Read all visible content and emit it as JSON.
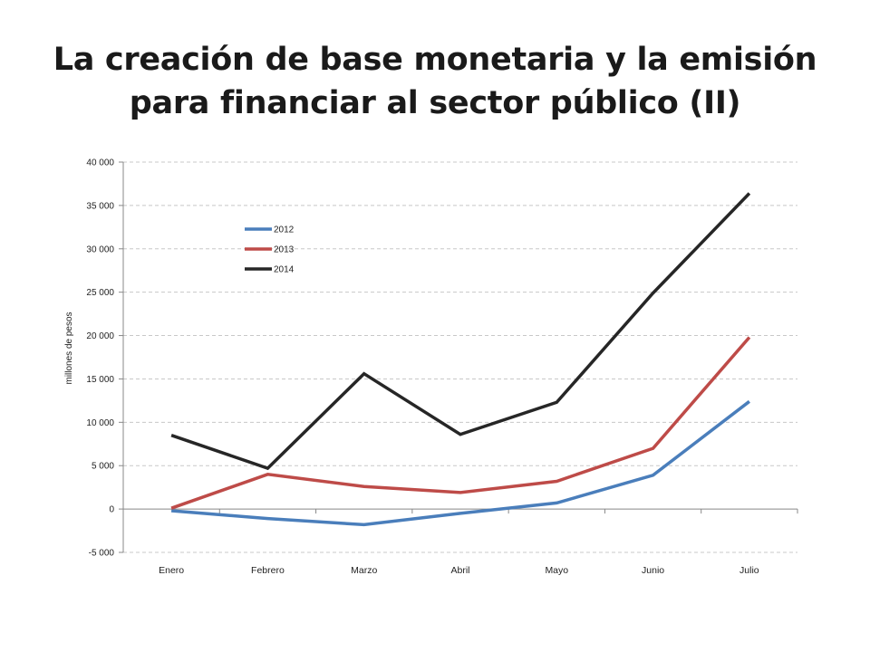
{
  "title": {
    "line1": "La creación de base monetaria y la emisión",
    "line2": "para financiar al sector público (II)"
  },
  "chart_data": {
    "type": "line",
    "title": "",
    "xlabel": "",
    "ylabel": "millones de pesos",
    "categories": [
      "Enero",
      "Febrero",
      "Marzo",
      "Abril",
      "Mayo",
      "Junio",
      "Julio"
    ],
    "ylim": [
      -5000,
      40000
    ],
    "yticks": [
      -5000,
      0,
      5000,
      10000,
      15000,
      20000,
      25000,
      30000,
      35000,
      40000
    ],
    "ytick_labels": [
      "-5 000",
      "0",
      "5 000",
      "10 000",
      "15 000",
      "20 000",
      "25 000",
      "30 000",
      "35 000",
      "40 000"
    ],
    "grid": "horizontal dashed",
    "legend_position": "upper-left inside plot",
    "series": [
      {
        "name": "2012",
        "color": "#4a7ebb",
        "values": [
          -200,
          -1100,
          -1800,
          -500,
          700,
          3900,
          12400
        ]
      },
      {
        "name": "2013",
        "color": "#be4b48",
        "values": [
          100,
          4000,
          2600,
          1900,
          3200,
          7000,
          19800
        ]
      },
      {
        "name": "2014",
        "color": "#262626",
        "values": [
          8500,
          4700,
          15600,
          8600,
          12300,
          24900,
          36400
        ]
      }
    ]
  }
}
